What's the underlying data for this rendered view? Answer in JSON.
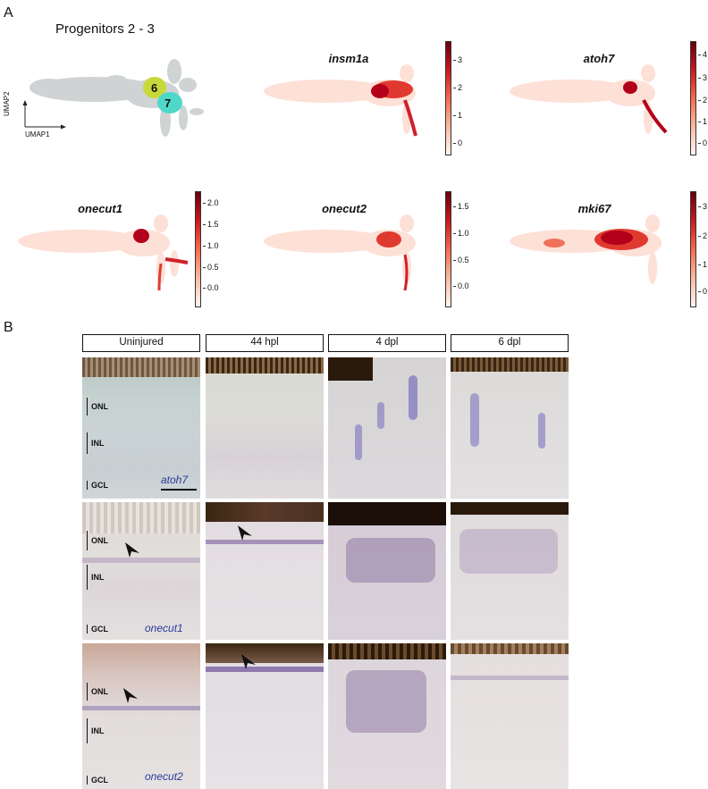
{
  "panel_a": {
    "letter": "A",
    "cluster_title": "Progenitors 2 - 3",
    "cluster_labels": [
      "6",
      "7"
    ],
    "axis_x": "UMAP1",
    "axis_y": "UMAP2",
    "colors": {
      "cluster6": "#c8d83a",
      "cluster7": "#4fd8c8",
      "base": "#cfd3d3",
      "expr_low": "#fde0d6",
      "expr_high": "#b3001a"
    },
    "features": [
      {
        "gene": "insm1a",
        "ticks": [
          "3",
          "2",
          "1",
          "0"
        ]
      },
      {
        "gene": "atoh7",
        "ticks": [
          "4",
          "3",
          "2",
          "1",
          "0"
        ]
      },
      {
        "gene": "onecut1",
        "ticks": [
          "2.0",
          "1.5",
          "1.0",
          "0.5",
          "0.0"
        ]
      },
      {
        "gene": "onecut2",
        "ticks": [
          "1.5",
          "1.0",
          "0.5",
          "0.0"
        ]
      },
      {
        "gene": "mki67",
        "ticks": [
          "3",
          "2",
          "1",
          "0"
        ]
      }
    ]
  },
  "panel_b": {
    "letter": "B",
    "columns": [
      "Uninjured",
      "44 hpl",
      "4 dpl",
      "6 dpl"
    ],
    "rows": [
      {
        "gene": "atoh7",
        "layers": [
          "ONL",
          "INL",
          "GCL"
        ]
      },
      {
        "gene": "onecut1",
        "layers": [
          "ONL",
          "INL",
          "GCL"
        ]
      },
      {
        "gene": "onecut2",
        "layers": [
          "ONL",
          "INL",
          "GCL"
        ]
      }
    ]
  }
}
